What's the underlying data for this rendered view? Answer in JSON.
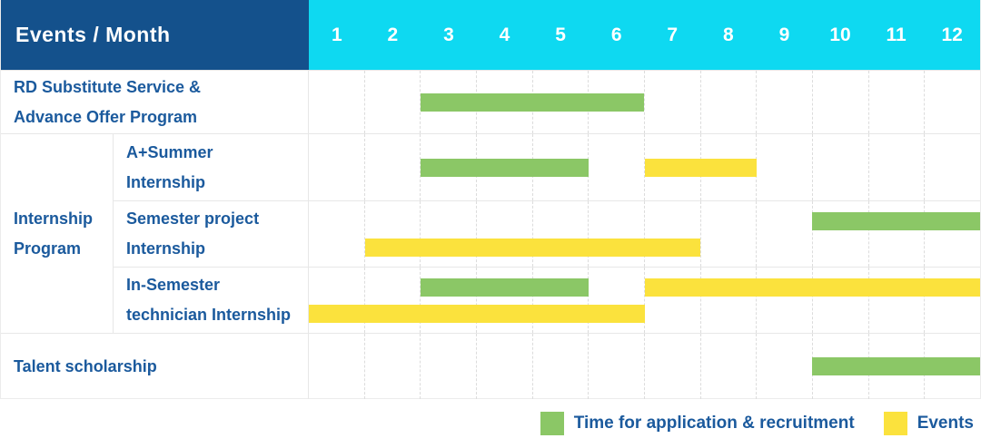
{
  "header": {
    "title": "Events / Month"
  },
  "palette": {
    "header_navy": "#14518C",
    "header_cyan": "#0ED9F1",
    "label_blue": "#1B5A9D",
    "application_green": "#8BC766",
    "event_yellow": "#FBE23D"
  },
  "chart_data": {
    "type": "gantt",
    "title": "Events / Month",
    "xlabel": "Month",
    "months": [
      "1",
      "2",
      "3",
      "4",
      "5",
      "6",
      "7",
      "8",
      "9",
      "10",
      "11",
      "12"
    ],
    "x_range": [
      1,
      12
    ],
    "grid": true,
    "bar_types": {
      "application": {
        "label": "Time for application & recruitment",
        "color": "#8BC766"
      },
      "event": {
        "label": "Events",
        "color": "#FBE23D"
      }
    },
    "groups": {
      "Internship Program": [
        "Internship",
        "Program"
      ]
    },
    "rows": [
      {
        "name": "RD Substitute Service & Advance Offer Program",
        "label_lines": [
          "RD Substitute Service &",
          "Advance Offer Program"
        ],
        "group": null,
        "lanes": [
          [
            {
              "type": "application",
              "start": 3,
              "end": 6
            }
          ]
        ]
      },
      {
        "name": "A+Summer Internship",
        "label_lines": [
          "A+Summer",
          "Internship"
        ],
        "group": "Internship Program",
        "lanes": [
          [
            {
              "type": "application",
              "start": 3,
              "end": 5
            },
            {
              "type": "event",
              "start": 7,
              "end": 8
            }
          ]
        ]
      },
      {
        "name": "Semester project Internship",
        "label_lines": [
          "Semester project",
          "Internship"
        ],
        "group": "Internship Program",
        "lanes": [
          [
            {
              "type": "application",
              "start": 10,
              "end": 12
            }
          ],
          [
            {
              "type": "event",
              "start": 2,
              "end": 7
            }
          ]
        ]
      },
      {
        "name": "In-Semester technician Internship",
        "label_lines": [
          "In-Semester",
          "technician Internship"
        ],
        "group": "Internship Program",
        "lanes": [
          [
            {
              "type": "application",
              "start": 3,
              "end": 5
            },
            {
              "type": "event",
              "start": 7,
              "end": 12
            }
          ],
          [
            {
              "type": "event",
              "start": 1,
              "end": 6
            }
          ]
        ]
      },
      {
        "name": "Talent scholarship",
        "label_lines": [
          "Talent scholarship"
        ],
        "group": null,
        "lanes": [
          [
            {
              "type": "application",
              "start": 10,
              "end": 12
            }
          ]
        ]
      }
    ]
  },
  "legend": {
    "items": [
      {
        "label": "Time for application & recruitment",
        "color": "#8BC766",
        "type": "application"
      },
      {
        "label": "Events",
        "color": "#FBE23D",
        "type": "event"
      }
    ]
  }
}
